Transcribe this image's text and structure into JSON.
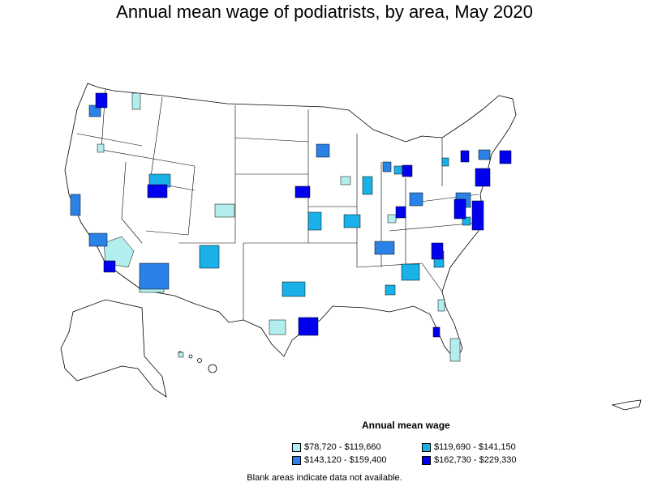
{
  "title": "Annual mean wage of podiatrists, by area, May 2020",
  "legend": {
    "title": "Annual mean wage",
    "items": [
      {
        "label": "$78,720 - $119,660",
        "color": "#b3eeee"
      },
      {
        "label": "$119,690 - $141,150",
        "color": "#1ab0e8"
      },
      {
        "label": "$143,120 - $159,400",
        "color": "#2a82e6"
      },
      {
        "label": "$162,730 - $229,330",
        "color": "#0000ee"
      }
    ]
  },
  "note": "Blank areas indicate data not available."
}
